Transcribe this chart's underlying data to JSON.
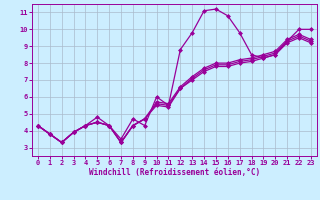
{
  "bg_color": "#cceeff",
  "line_color": "#990099",
  "grid_color": "#aabbcc",
  "xlabel": "Windchill (Refroidissement éolien,°C)",
  "tick_color": "#990099",
  "xlim": [
    -0.5,
    23.5
  ],
  "ylim": [
    2.5,
    11.5
  ],
  "yticks": [
    3,
    4,
    5,
    6,
    7,
    8,
    9,
    10,
    11
  ],
  "xticks": [
    0,
    1,
    2,
    3,
    4,
    5,
    6,
    7,
    8,
    9,
    10,
    11,
    12,
    13,
    14,
    15,
    16,
    17,
    18,
    19,
    20,
    21,
    22,
    23
  ],
  "lines": [
    {
      "x": [
        0,
        1,
        2,
        3,
        4,
        5,
        6,
        7,
        8,
        9,
        10,
        11,
        12,
        13,
        14,
        15,
        16,
        17,
        18,
        19,
        20,
        21,
        22,
        23
      ],
      "y": [
        4.3,
        3.8,
        3.3,
        3.9,
        4.3,
        4.8,
        4.3,
        3.5,
        4.7,
        4.3,
        6.0,
        5.5,
        8.8,
        9.8,
        11.1,
        11.2,
        10.8,
        9.8,
        8.5,
        8.3,
        8.5,
        9.3,
        10.0,
        10.0
      ]
    },
    {
      "x": [
        0,
        1,
        2,
        3,
        4,
        5,
        6,
        7,
        8,
        9,
        10,
        11,
        12,
        13,
        14,
        15,
        16,
        17,
        18,
        19,
        20,
        21,
        22,
        23
      ],
      "y": [
        4.3,
        3.8,
        3.3,
        3.9,
        4.3,
        4.5,
        4.3,
        3.3,
        4.3,
        4.7,
        5.5,
        5.4,
        6.5,
        7.0,
        7.5,
        7.8,
        7.8,
        8.0,
        8.1,
        8.3,
        8.5,
        9.2,
        9.5,
        9.2
      ]
    },
    {
      "x": [
        0,
        1,
        2,
        3,
        4,
        5,
        6,
        7,
        8,
        9,
        10,
        11,
        12,
        13,
        14,
        15,
        16,
        17,
        18,
        19,
        20,
        21,
        22,
        23
      ],
      "y": [
        4.3,
        3.8,
        3.3,
        3.9,
        4.3,
        4.5,
        4.3,
        3.3,
        4.3,
        4.7,
        5.6,
        5.5,
        6.5,
        7.1,
        7.6,
        7.9,
        7.9,
        8.1,
        8.2,
        8.4,
        8.6,
        9.3,
        9.6,
        9.3
      ]
    },
    {
      "x": [
        0,
        1,
        2,
        3,
        4,
        5,
        6,
        7,
        8,
        9,
        10,
        11,
        12,
        13,
        14,
        15,
        16,
        17,
        18,
        19,
        20,
        21,
        22,
        23
      ],
      "y": [
        4.3,
        3.8,
        3.3,
        3.9,
        4.3,
        4.5,
        4.3,
        3.3,
        4.3,
        4.7,
        5.7,
        5.6,
        6.6,
        7.2,
        7.7,
        8.0,
        8.0,
        8.2,
        8.3,
        8.5,
        8.7,
        9.4,
        9.7,
        9.4
      ]
    }
  ],
  "marker": "D",
  "marker_size": 2.0,
  "linewidth": 0.9,
  "font_size_ticks": 5.0,
  "font_size_xlabel": 5.5
}
